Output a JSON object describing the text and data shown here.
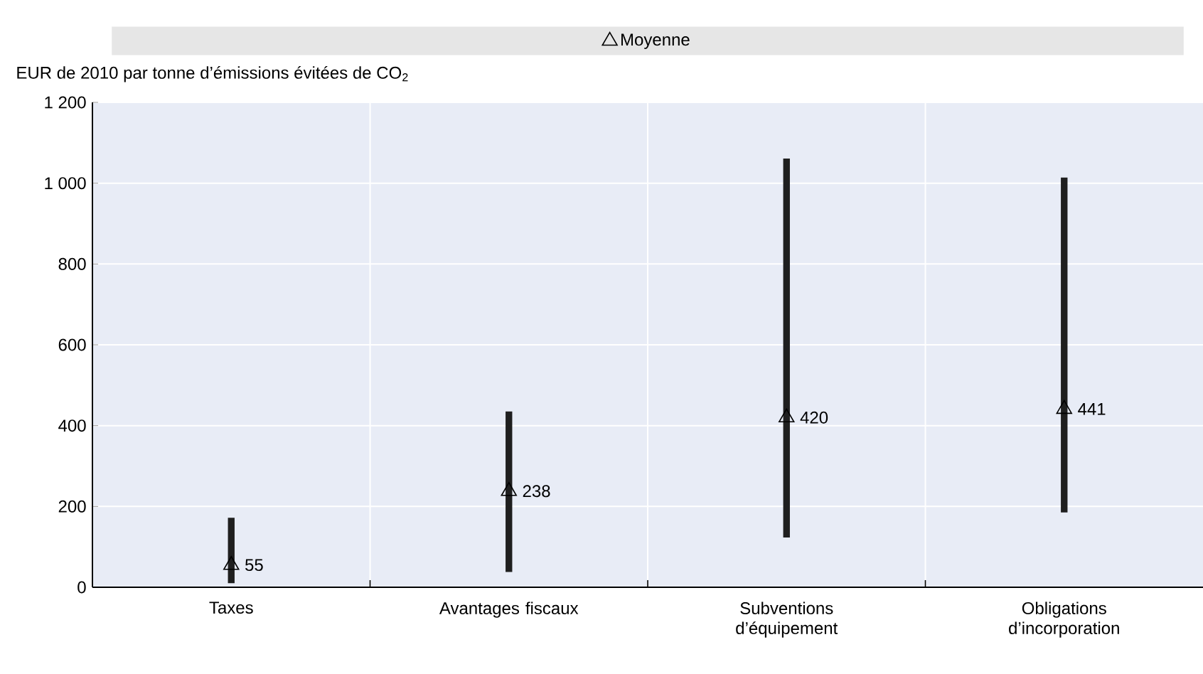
{
  "chart_data": {
    "type": "bar",
    "ylabel": "EUR de 2010 par tonne d’émissions évitées de CO$_{2}$",
    "categories": [
      "Taxes",
      "Avantages fiscaux",
      "Subventions d’équipement",
      "Obligations d’incorporation"
    ],
    "series": [
      {
        "color": "#1f1f1f",
        "base": [
          10,
          38,
          123,
          185
        ],
        "values": [
          162,
          397,
          938,
          829
        ]
      },
      {
        "type": "scatter",
        "name": "Moyenne",
        "color": "#000000",
        "marker": "triangle",
        "values": [
          55,
          238,
          420,
          441
        ],
        "value_labels": [
          "55",
          "238",
          "420",
          "441"
        ]
      }
    ],
    "ylim": [
      0,
      1200
    ],
    "yticks": [
      0,
      200,
      400,
      600,
      800,
      {
        "value": 1000,
        "label": "1 000"
      },
      {
        "value": 1200,
        "label": "1 200"
      }
    ],
    "grid": true,
    "legend": "top"
  }
}
